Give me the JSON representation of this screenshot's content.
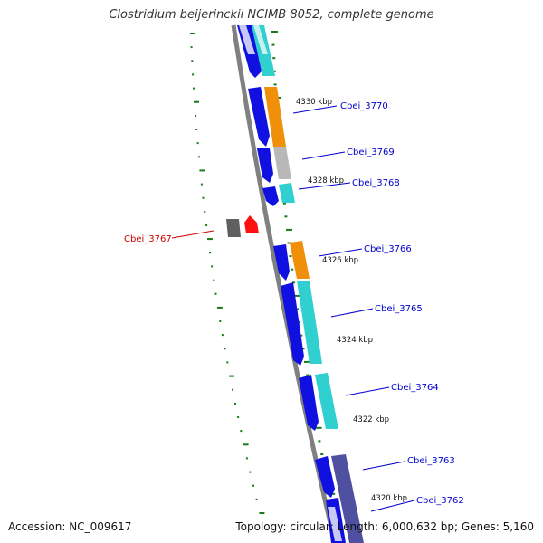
{
  "title": "Clostridium beijerinckii NCIMB 8052, complete genome",
  "footer": {
    "accession": "Accession: NC_009617",
    "summary": "Topology: circular; Length: 6,000,632 bp; Genes: 5,160"
  },
  "colors": {
    "cds_blue": "#1010e0",
    "cyan": "#30d0d0",
    "orange": "#f0900a",
    "gray": "#b8b8b8",
    "purple": "#5050a0",
    "selected_red": "#ff1010",
    "dark_gray": "#606060",
    "label_blue": "#0000cc",
    "label_red": "#cc0000",
    "tick_green": "#1a7a1a",
    "axis_gray": "#808080"
  },
  "kbp_labels": [
    "4330 kbp",
    "4328 kbp",
    "4326 kbp",
    "4324 kbp",
    "4322 kbp",
    "4320 kbp"
  ],
  "genes": [
    {
      "id": "Cbei_3770",
      "color": "blue"
    },
    {
      "id": "Cbei_3769",
      "color": "blue"
    },
    {
      "id": "Cbei_3768",
      "color": "blue"
    },
    {
      "id": "Cbei_3767",
      "color": "red"
    },
    {
      "id": "Cbei_3766",
      "color": "blue"
    },
    {
      "id": "Cbei_3765",
      "color": "blue"
    },
    {
      "id": "Cbei_3764",
      "color": "blue"
    },
    {
      "id": "Cbei_3763",
      "color": "blue"
    },
    {
      "id": "Cbei_3762",
      "color": "blue"
    }
  ]
}
